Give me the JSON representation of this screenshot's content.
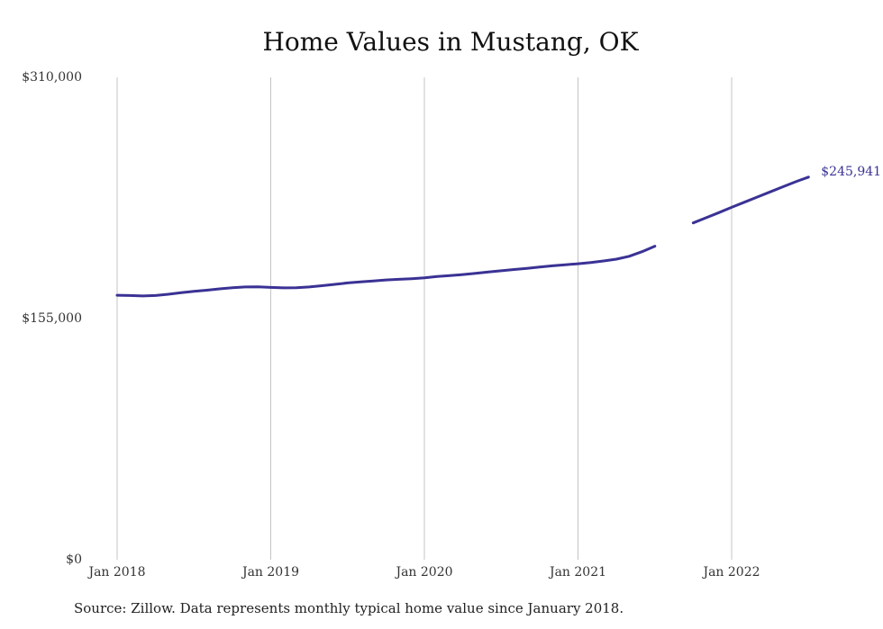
{
  "chart_data": {
    "type": "line",
    "title": "Home Values in Mustang, OK",
    "xlabel": "",
    "ylabel": "",
    "ylim": [
      0,
      310000
    ],
    "y_ticks": [
      {
        "value": 0,
        "label": "$0"
      },
      {
        "value": 155000,
        "label": "$155,000"
      },
      {
        "value": 310000,
        "label": "$310,000"
      }
    ],
    "x_ticks": [
      {
        "value": "2018-01",
        "label": "Jan 2018"
      },
      {
        "value": "2019-01",
        "label": "Jan 2019"
      },
      {
        "value": "2020-01",
        "label": "Jan 2020"
      },
      {
        "value": "2021-01",
        "label": "Jan 2021"
      },
      {
        "value": "2022-01",
        "label": "Jan 2022"
      }
    ],
    "grid": {
      "vertical": true,
      "horizontal": false
    },
    "line_color": "#3a3294",
    "series": [
      {
        "segments": [
          [
            [
              "2018-01",
              170000
            ],
            [
              "2018-02",
              169800
            ],
            [
              "2018-03",
              169500
            ],
            [
              "2018-04",
              169800
            ],
            [
              "2018-05",
              170600
            ],
            [
              "2018-06",
              171600
            ],
            [
              "2018-07",
              172500
            ],
            [
              "2018-08",
              173200
            ],
            [
              "2018-09",
              174100
            ],
            [
              "2018-10",
              174800
            ],
            [
              "2018-11",
              175300
            ],
            [
              "2018-12",
              175400
            ],
            [
              "2019-01",
              175000
            ],
            [
              "2019-02",
              174700
            ],
            [
              "2019-03",
              174800
            ],
            [
              "2019-04",
              175300
            ],
            [
              "2019-05",
              176100
            ],
            [
              "2019-06",
              177000
            ],
            [
              "2019-07",
              177900
            ],
            [
              "2019-08",
              178600
            ],
            [
              "2019-09",
              179200
            ],
            [
              "2019-10",
              179800
            ],
            [
              "2019-11",
              180200
            ],
            [
              "2019-12",
              180600
            ],
            [
              "2020-01",
              181200
            ],
            [
              "2020-02",
              182000
            ],
            [
              "2020-03",
              182600
            ],
            [
              "2020-04",
              183300
            ],
            [
              "2020-05",
              184100
            ],
            [
              "2020-06",
              184900
            ],
            [
              "2020-07",
              185700
            ],
            [
              "2020-08",
              186500
            ],
            [
              "2020-09",
              187300
            ],
            [
              "2020-10",
              188100
            ],
            [
              "2020-11",
              188900
            ],
            [
              "2020-12",
              189600
            ],
            [
              "2021-01",
              190200
            ],
            [
              "2021-02",
              191000
            ],
            [
              "2021-03",
              192000
            ],
            [
              "2021-04",
              193200
            ],
            [
              "2021-05",
              195000
            ],
            [
              "2021-06",
              198000
            ],
            [
              "2021-07",
              201500
            ]
          ],
          [
            [
              "2021-10",
              216500
            ],
            [
              "2021-11",
              219800
            ],
            [
              "2021-12",
              223100
            ],
            [
              "2022-01",
              226500
            ],
            [
              "2022-02",
              229800
            ],
            [
              "2022-03",
              233100
            ],
            [
              "2022-04",
              236400
            ],
            [
              "2022-05",
              239700
            ],
            [
              "2022-06",
              242900
            ],
            [
              "2022-07",
              245941
            ]
          ]
        ],
        "end_label": "$245,941"
      }
    ],
    "source": "Source: Zillow. Data represents monthly typical home value since January 2018."
  }
}
